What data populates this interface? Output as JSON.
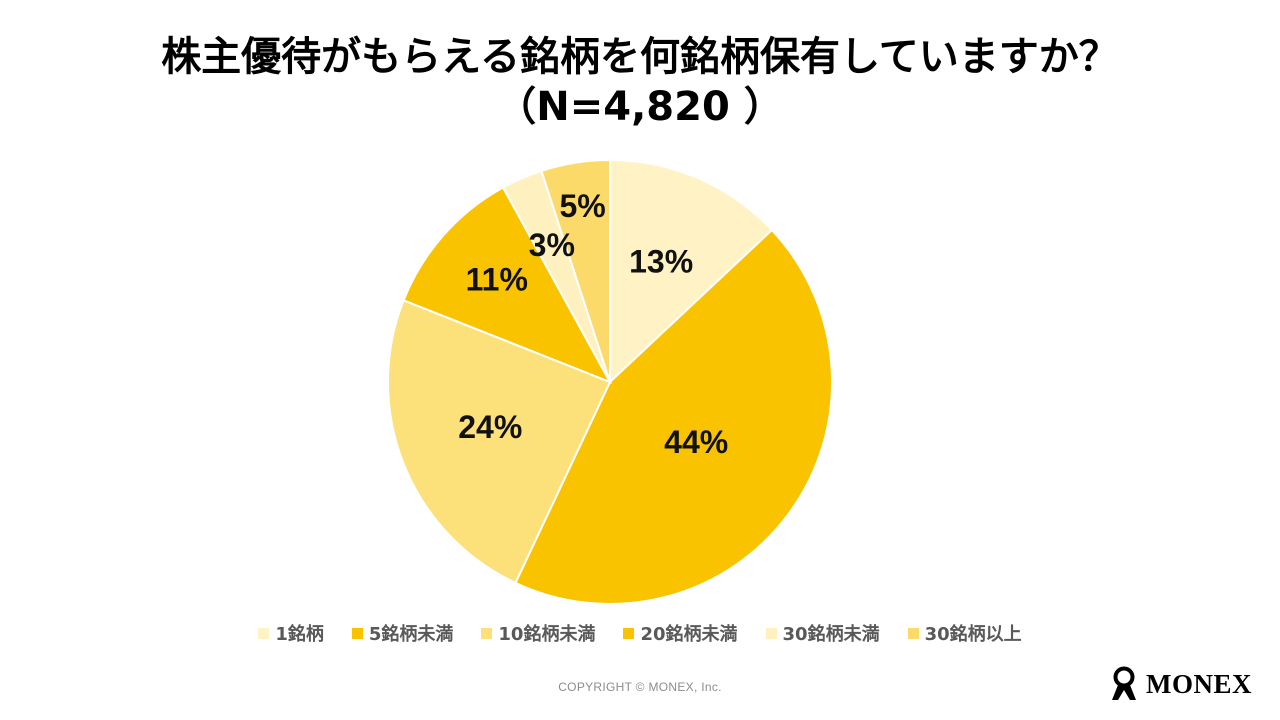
{
  "title_line1": "株主優待がもらえる銘柄を何銘柄保有していますか？",
  "title_line2": "（N=4,820 ）",
  "chart_data": {
    "type": "pie",
    "title": "株主優待がもらえる銘柄を何銘柄保有していますか？（N=4,820 ）",
    "categories": [
      "1銘柄",
      "5銘柄未満",
      "10銘柄未満",
      "20銘柄未満",
      "30銘柄未満",
      "30銘柄以上"
    ],
    "values": [
      13,
      44,
      24,
      11,
      3,
      5
    ],
    "labels": [
      "13%",
      "44%",
      "24%",
      "11%",
      "3%",
      "5%"
    ],
    "colors": [
      "#FFF2C5",
      "#F9C300",
      "#FCE07A",
      "#F9C300",
      "#FFF0C0",
      "#FCDA6A"
    ],
    "legend_position": "bottom"
  },
  "copyright": "COPYRIGHT © MONEX, Inc.",
  "logo_text": "MONEX"
}
